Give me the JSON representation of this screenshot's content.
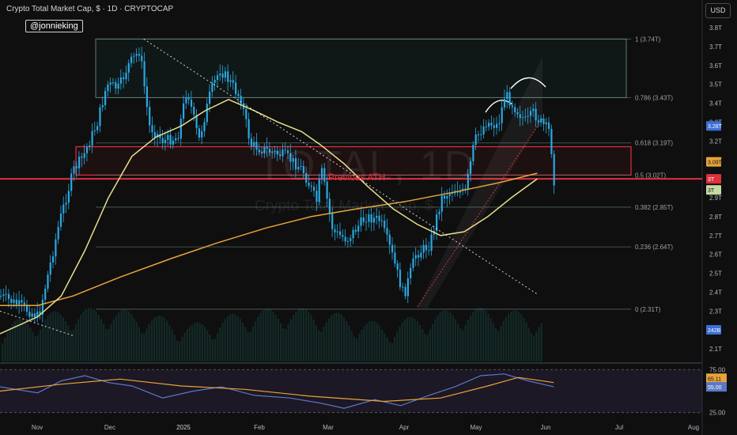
{
  "header": {
    "title": "Crypto Total Market Cap, $ · 1D · CRYPTOCAP",
    "handle": "@jonnieking",
    "currency": "USD"
  },
  "watermark": {
    "symbol": "TOTAL, 1D",
    "name": "Crypto Total Market Cap, $"
  },
  "annotations": {
    "previous_ath": "Previous ATH"
  },
  "colors": {
    "candle": "#29a9e3",
    "ma_slow": "#e8a33a",
    "ma_fast": "#e6e08a",
    "resistance": "#e0303d",
    "fib": "#5d7a72",
    "rsi": "#5b78c7",
    "rsi_ma": "#e8a33a"
  },
  "chart_data": [
    {
      "type": "candlestick",
      "symbol": "CRYPTOCAP:TOTAL",
      "interval": "1D",
      "x_tick_labels": [
        "Nov",
        "Dec",
        "2025",
        "Feb",
        "Mar",
        "Apr",
        "May",
        "Jun",
        "Jul",
        "Aug"
      ],
      "y_axis": {
        "unit": "T",
        "ylim": [
          2.05,
          3.85
        ],
        "tick_labels": [
          "3.8T",
          "3.7T",
          "3.6T",
          "3.5T",
          "3.4T",
          "3.3T",
          "3.2T",
          "3.1T",
          "3T",
          "2.9T",
          "2.8T",
          "2.7T",
          "2.6T",
          "2.5T",
          "2.4T",
          "2.3T",
          "2.1T"
        ]
      },
      "price_path": [
        {
          "x": "2024-10-20",
          "y": 2.38
        },
        {
          "x": "2024-10-28",
          "y": 2.33
        },
        {
          "x": "2024-11-05",
          "y": 2.27
        },
        {
          "x": "2024-11-10",
          "y": 2.55
        },
        {
          "x": "2024-11-14",
          "y": 2.78
        },
        {
          "x": "2024-11-20",
          "y": 3.05
        },
        {
          "x": "2024-11-24",
          "y": 3.12
        },
        {
          "x": "2024-11-30",
          "y": 3.3
        },
        {
          "x": "2024-12-04",
          "y": 3.5
        },
        {
          "x": "2024-12-09",
          "y": 3.48
        },
        {
          "x": "2024-12-13",
          "y": 3.6
        },
        {
          "x": "2024-12-18",
          "y": 3.68
        },
        {
          "x": "2024-12-22",
          "y": 3.28
        },
        {
          "x": "2024-12-28",
          "y": 3.2
        },
        {
          "x": "2025-01-03",
          "y": 3.22
        },
        {
          "x": "2025-01-07",
          "y": 3.48
        },
        {
          "x": "2025-01-12",
          "y": 3.2
        },
        {
          "x": "2025-01-17",
          "y": 3.46
        },
        {
          "x": "2025-01-21",
          "y": 3.58
        },
        {
          "x": "2025-01-26",
          "y": 3.5
        },
        {
          "x": "2025-01-30",
          "y": 3.42
        },
        {
          "x": "2025-02-03",
          "y": 3.18
        },
        {
          "x": "2025-02-10",
          "y": 3.15
        },
        {
          "x": "2025-02-18",
          "y": 3.12
        },
        {
          "x": "2025-02-25",
          "y": 3.05
        },
        {
          "x": "2025-03-03",
          "y": 2.88
        },
        {
          "x": "2025-03-05",
          "y": 3.05
        },
        {
          "x": "2025-03-10",
          "y": 2.72
        },
        {
          "x": "2025-03-16",
          "y": 2.68
        },
        {
          "x": "2025-03-24",
          "y": 2.8
        },
        {
          "x": "2025-03-30",
          "y": 2.78
        },
        {
          "x": "2025-04-04",
          "y": 2.6
        },
        {
          "x": "2025-04-09",
          "y": 2.38
        },
        {
          "x": "2025-04-14",
          "y": 2.6
        },
        {
          "x": "2025-04-20",
          "y": 2.65
        },
        {
          "x": "2025-04-25",
          "y": 2.9
        },
        {
          "x": "2025-05-01",
          "y": 2.95
        },
        {
          "x": "2025-05-05",
          "y": 2.92
        },
        {
          "x": "2025-05-09",
          "y": 3.2
        },
        {
          "x": "2025-05-14",
          "y": 3.3
        },
        {
          "x": "2025-05-19",
          "y": 3.28
        },
        {
          "x": "2025-05-22",
          "y": 3.45
        },
        {
          "x": "2025-05-26",
          "y": 3.38
        },
        {
          "x": "2025-05-31",
          "y": 3.3
        },
        {
          "x": "2025-06-03",
          "y": 3.35
        },
        {
          "x": "2025-06-06",
          "y": 3.3
        },
        {
          "x": "2025-06-10",
          "y": 3.25
        },
        {
          "x": "2025-06-12",
          "y": 2.96
        }
      ],
      "moving_averages": [
        {
          "name": "MA fast",
          "points": [
            {
              "x": "2024-10-20",
              "y": 2.18
            },
            {
              "x": "2024-11-05",
              "y": 2.27
            },
            {
              "x": "2024-11-15",
              "y": 2.38
            },
            {
              "x": "2024-11-25",
              "y": 2.62
            },
            {
              "x": "2024-12-05",
              "y": 2.9
            },
            {
              "x": "2024-12-15",
              "y": 3.12
            },
            {
              "x": "2024-12-25",
              "y": 3.22
            },
            {
              "x": "2025-01-05",
              "y": 3.28
            },
            {
              "x": "2025-01-15",
              "y": 3.36
            },
            {
              "x": "2025-01-25",
              "y": 3.42
            },
            {
              "x": "2025-02-05",
              "y": 3.36
            },
            {
              "x": "2025-02-15",
              "y": 3.3
            },
            {
              "x": "2025-02-25",
              "y": 3.25
            },
            {
              "x": "2025-03-05",
              "y": 3.18
            },
            {
              "x": "2025-03-15",
              "y": 3.08
            },
            {
              "x": "2025-03-25",
              "y": 2.96
            },
            {
              "x": "2025-04-05",
              "y": 2.84
            },
            {
              "x": "2025-04-15",
              "y": 2.76
            },
            {
              "x": "2025-04-25",
              "y": 2.7
            },
            {
              "x": "2025-05-05",
              "y": 2.72
            },
            {
              "x": "2025-05-15",
              "y": 2.8
            },
            {
              "x": "2025-05-25",
              "y": 2.9
            },
            {
              "x": "2025-06-05",
              "y": 3.0
            }
          ]
        },
        {
          "name": "MA slow",
          "points": [
            {
              "x": "2024-10-20",
              "y": 2.33
            },
            {
              "x": "2024-11-05",
              "y": 2.33
            },
            {
              "x": "2024-11-20",
              "y": 2.38
            },
            {
              "x": "2024-12-10",
              "y": 2.48
            },
            {
              "x": "2025-01-01",
              "y": 2.58
            },
            {
              "x": "2025-01-20",
              "y": 2.66
            },
            {
              "x": "2025-02-10",
              "y": 2.74
            },
            {
              "x": "2025-03-01",
              "y": 2.8
            },
            {
              "x": "2025-03-20",
              "y": 2.84
            },
            {
              "x": "2025-04-10",
              "y": 2.88
            },
            {
              "x": "2025-05-01",
              "y": 2.93
            },
            {
              "x": "2025-05-20",
              "y": 2.98
            },
            {
              "x": "2025-06-05",
              "y": 3.03
            }
          ]
        }
      ],
      "trendlines": [
        {
          "name": "descending",
          "from": {
            "x": "2024-12-20",
            "y": 3.74
          },
          "to": {
            "x": "2025-06-05",
            "y": 2.39
          }
        },
        {
          "name": "lower-left",
          "from": {
            "x": "2024-10-20",
            "y": 2.3
          },
          "to": {
            "x": "2024-11-20",
            "y": 2.17
          }
        }
      ],
      "fibonacci": [
        {
          "level": "1",
          "value": "3.74T",
          "label": "1 (3.74T)"
        },
        {
          "level": "0.786",
          "value": "3.43T",
          "label": "0.786 (3.43T)"
        },
        {
          "level": "0.618",
          "value": "3.19T",
          "label": "0.618 (3.19T)"
        },
        {
          "level": "0.5",
          "value": "3.02T",
          "label": "0.5 (3.02T)"
        },
        {
          "level": "0.382",
          "value": "2.85T",
          "label": "0.382 (2.85T)"
        },
        {
          "level": "0.236",
          "value": "2.64T",
          "label": "0.236 (2.64T)"
        },
        {
          "level": "0",
          "value": "2.31T",
          "label": "0 (2.31T)"
        }
      ],
      "zones": [
        {
          "name": "upper-range",
          "y_from": 3.43,
          "y_to": 3.74
        },
        {
          "name": "previous-ath-zone",
          "y_from": 3.02,
          "y_to": 3.17
        }
      ],
      "horizontal_line": {
        "name": "previous ATH",
        "y": 3.0
      },
      "price_tags": [
        {
          "label": "3.28T",
          "color": "#3b6fd6"
        },
        {
          "label": "3.09T",
          "color": "#e8a33a"
        },
        {
          "label": "3T",
          "color": "#e0303d"
        },
        {
          "label": "3T",
          "color": "#c6d9a0"
        },
        {
          "label": "242B",
          "color": "#3b6fd6"
        }
      ],
      "volume_last": "242B"
    },
    {
      "type": "line",
      "name": "RSI",
      "ylim": [
        20,
        80
      ],
      "tick_labels": [
        "75.00",
        "25.00"
      ],
      "values_labels": [
        "65.11",
        "55.00"
      ],
      "series": [
        {
          "name": "RSI",
          "points": [
            {
              "x": "2024-10-20",
              "y": 55
            },
            {
              "x": "2024-11-05",
              "y": 48
            },
            {
              "x": "2024-11-15",
              "y": 62
            },
            {
              "x": "2024-11-25",
              "y": 68
            },
            {
              "x": "2024-12-05",
              "y": 60
            },
            {
              "x": "2024-12-15",
              "y": 56
            },
            {
              "x": "2024-12-28",
              "y": 42
            },
            {
              "x": "2025-01-10",
              "y": 50
            },
            {
              "x": "2025-01-22",
              "y": 55
            },
            {
              "x": "2025-02-05",
              "y": 45
            },
            {
              "x": "2025-02-20",
              "y": 42
            },
            {
              "x": "2025-03-05",
              "y": 36
            },
            {
              "x": "2025-03-15",
              "y": 30
            },
            {
              "x": "2025-03-28",
              "y": 40
            },
            {
              "x": "2025-04-08",
              "y": 33
            },
            {
              "x": "2025-04-20",
              "y": 45
            },
            {
              "x": "2025-05-01",
              "y": 55
            },
            {
              "x": "2025-05-12",
              "y": 68
            },
            {
              "x": "2025-05-22",
              "y": 70
            },
            {
              "x": "2025-06-01",
              "y": 62
            },
            {
              "x": "2025-06-12",
              "y": 55
            }
          ]
        },
        {
          "name": "RSI MA",
          "points": [
            {
              "x": "2024-10-20",
              "y": 50
            },
            {
              "x": "2024-11-15",
              "y": 58
            },
            {
              "x": "2024-12-10",
              "y": 64
            },
            {
              "x": "2025-01-05",
              "y": 56
            },
            {
              "x": "2025-02-01",
              "y": 52
            },
            {
              "x": "2025-03-01",
              "y": 44
            },
            {
              "x": "2025-04-01",
              "y": 38
            },
            {
              "x": "2025-04-25",
              "y": 42
            },
            {
              "x": "2025-05-15",
              "y": 56
            },
            {
              "x": "2025-05-28",
              "y": 66
            },
            {
              "x": "2025-06-12",
              "y": 60
            }
          ]
        }
      ]
    }
  ]
}
